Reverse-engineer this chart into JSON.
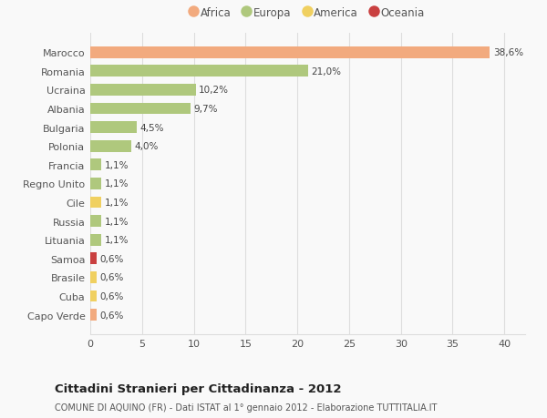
{
  "countries": [
    "Marocco",
    "Romania",
    "Ucraina",
    "Albania",
    "Bulgaria",
    "Polonia",
    "Francia",
    "Regno Unito",
    "Cile",
    "Russia",
    "Lituania",
    "Samoa",
    "Brasile",
    "Cuba",
    "Capo Verde"
  ],
  "values": [
    38.6,
    21.0,
    10.2,
    9.7,
    4.5,
    4.0,
    1.1,
    1.1,
    1.1,
    1.1,
    1.1,
    0.6,
    0.6,
    0.6,
    0.6
  ],
  "labels": [
    "38,6%",
    "21,0%",
    "10,2%",
    "9,7%",
    "4,5%",
    "4,0%",
    "1,1%",
    "1,1%",
    "1,1%",
    "1,1%",
    "1,1%",
    "0,6%",
    "0,6%",
    "0,6%",
    "0,6%"
  ],
  "continents": [
    "Africa",
    "Europa",
    "Europa",
    "Europa",
    "Europa",
    "Europa",
    "Europa",
    "Europa",
    "America",
    "Europa",
    "Europa",
    "Oceania",
    "America",
    "America",
    "Africa"
  ],
  "colors": {
    "Africa": "#F2AA7E",
    "Europa": "#AFC87D",
    "America": "#F0D060",
    "Oceania": "#C94040"
  },
  "title": "Cittadini Stranieri per Cittadinanza - 2012",
  "subtitle": "COMUNE DI AQUINO (FR) - Dati ISTAT al 1° gennaio 2012 - Elaborazione TUTTITALIA.IT",
  "xlim": [
    0,
    42
  ],
  "xticks": [
    0,
    5,
    10,
    15,
    20,
    25,
    30,
    35,
    40
  ],
  "background_color": "#f9f9f9",
  "grid_color": "#dddddd",
  "bar_height": 0.62,
  "legend_order": [
    "Africa",
    "Europa",
    "America",
    "Oceania"
  ]
}
